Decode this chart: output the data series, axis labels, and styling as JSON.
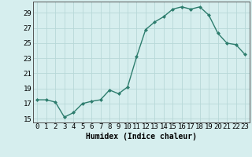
{
  "x": [
    0,
    1,
    2,
    3,
    4,
    5,
    6,
    7,
    8,
    9,
    10,
    11,
    12,
    13,
    14,
    15,
    16,
    17,
    18,
    19,
    20,
    21,
    22,
    23
  ],
  "y": [
    17.5,
    17.5,
    17.2,
    15.2,
    15.8,
    17.0,
    17.3,
    17.5,
    18.8,
    18.3,
    19.2,
    23.2,
    26.8,
    27.8,
    28.5,
    29.5,
    29.8,
    29.5,
    29.8,
    28.7,
    26.3,
    25.0,
    24.8,
    23.5
  ],
  "line_color": "#2e7d6e",
  "marker": "D",
  "marker_size": 2.0,
  "bg_color": "#d6eeee",
  "grid_color": "#b8d8d8",
  "xlabel": "Humidex (Indice chaleur)",
  "ylim": [
    14.5,
    30.5
  ],
  "xlim": [
    -0.5,
    23.5
  ],
  "yticks": [
    15,
    17,
    19,
    21,
    23,
    25,
    27,
    29
  ],
  "xlabel_fontsize": 7,
  "tick_fontsize": 6.5,
  "line_width": 1.0
}
